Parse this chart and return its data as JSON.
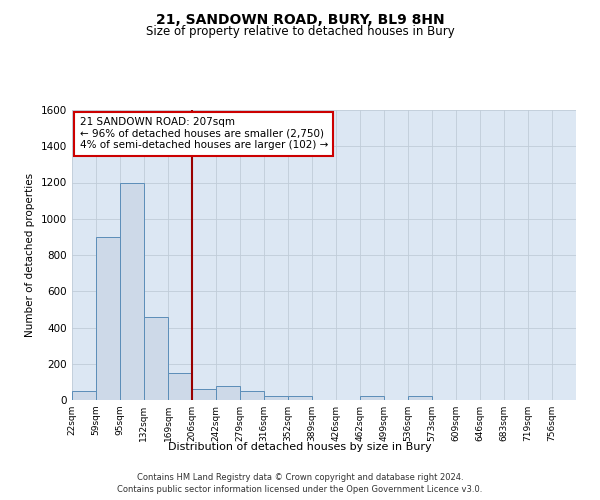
{
  "title1": "21, SANDOWN ROAD, BURY, BL9 8HN",
  "title2": "Size of property relative to detached houses in Bury",
  "xlabel": "Distribution of detached houses by size in Bury",
  "ylabel": "Number of detached properties",
  "bin_labels": [
    "22sqm",
    "59sqm",
    "95sqm",
    "132sqm",
    "169sqm",
    "206sqm",
    "242sqm",
    "279sqm",
    "316sqm",
    "352sqm",
    "389sqm",
    "426sqm",
    "462sqm",
    "499sqm",
    "536sqm",
    "573sqm",
    "609sqm",
    "646sqm",
    "683sqm",
    "719sqm",
    "756sqm"
  ],
  "bin_edges": [
    22,
    59,
    95,
    132,
    169,
    206,
    242,
    279,
    316,
    352,
    389,
    426,
    462,
    499,
    536,
    573,
    609,
    646,
    683,
    719,
    756
  ],
  "bar_heights": [
    50,
    900,
    1200,
    460,
    150,
    60,
    80,
    50,
    20,
    20,
    0,
    0,
    20,
    0,
    20,
    0,
    0,
    0,
    0,
    0
  ],
  "bar_color": "#cdd9e8",
  "bar_edge_color": "#5b8db8",
  "vline_x": 206,
  "vline_color": "#990000",
  "annotation_text": "21 SANDOWN ROAD: 207sqm\n← 96% of detached houses are smaller (2,750)\n4% of semi-detached houses are larger (102) →",
  "annotation_box_color": "#cc0000",
  "ylim": [
    0,
    1600
  ],
  "yticks": [
    0,
    200,
    400,
    600,
    800,
    1000,
    1200,
    1400,
    1600
  ],
  "footer1": "Contains HM Land Registry data © Crown copyright and database right 2024.",
  "footer2": "Contains public sector information licensed under the Open Government Licence v3.0.",
  "bg_color": "#e8eef5",
  "plot_bg_color": "#dce7f3",
  "grid_color": "#c0ccd8",
  "title1_fontsize": 10,
  "title2_fontsize": 8.5
}
